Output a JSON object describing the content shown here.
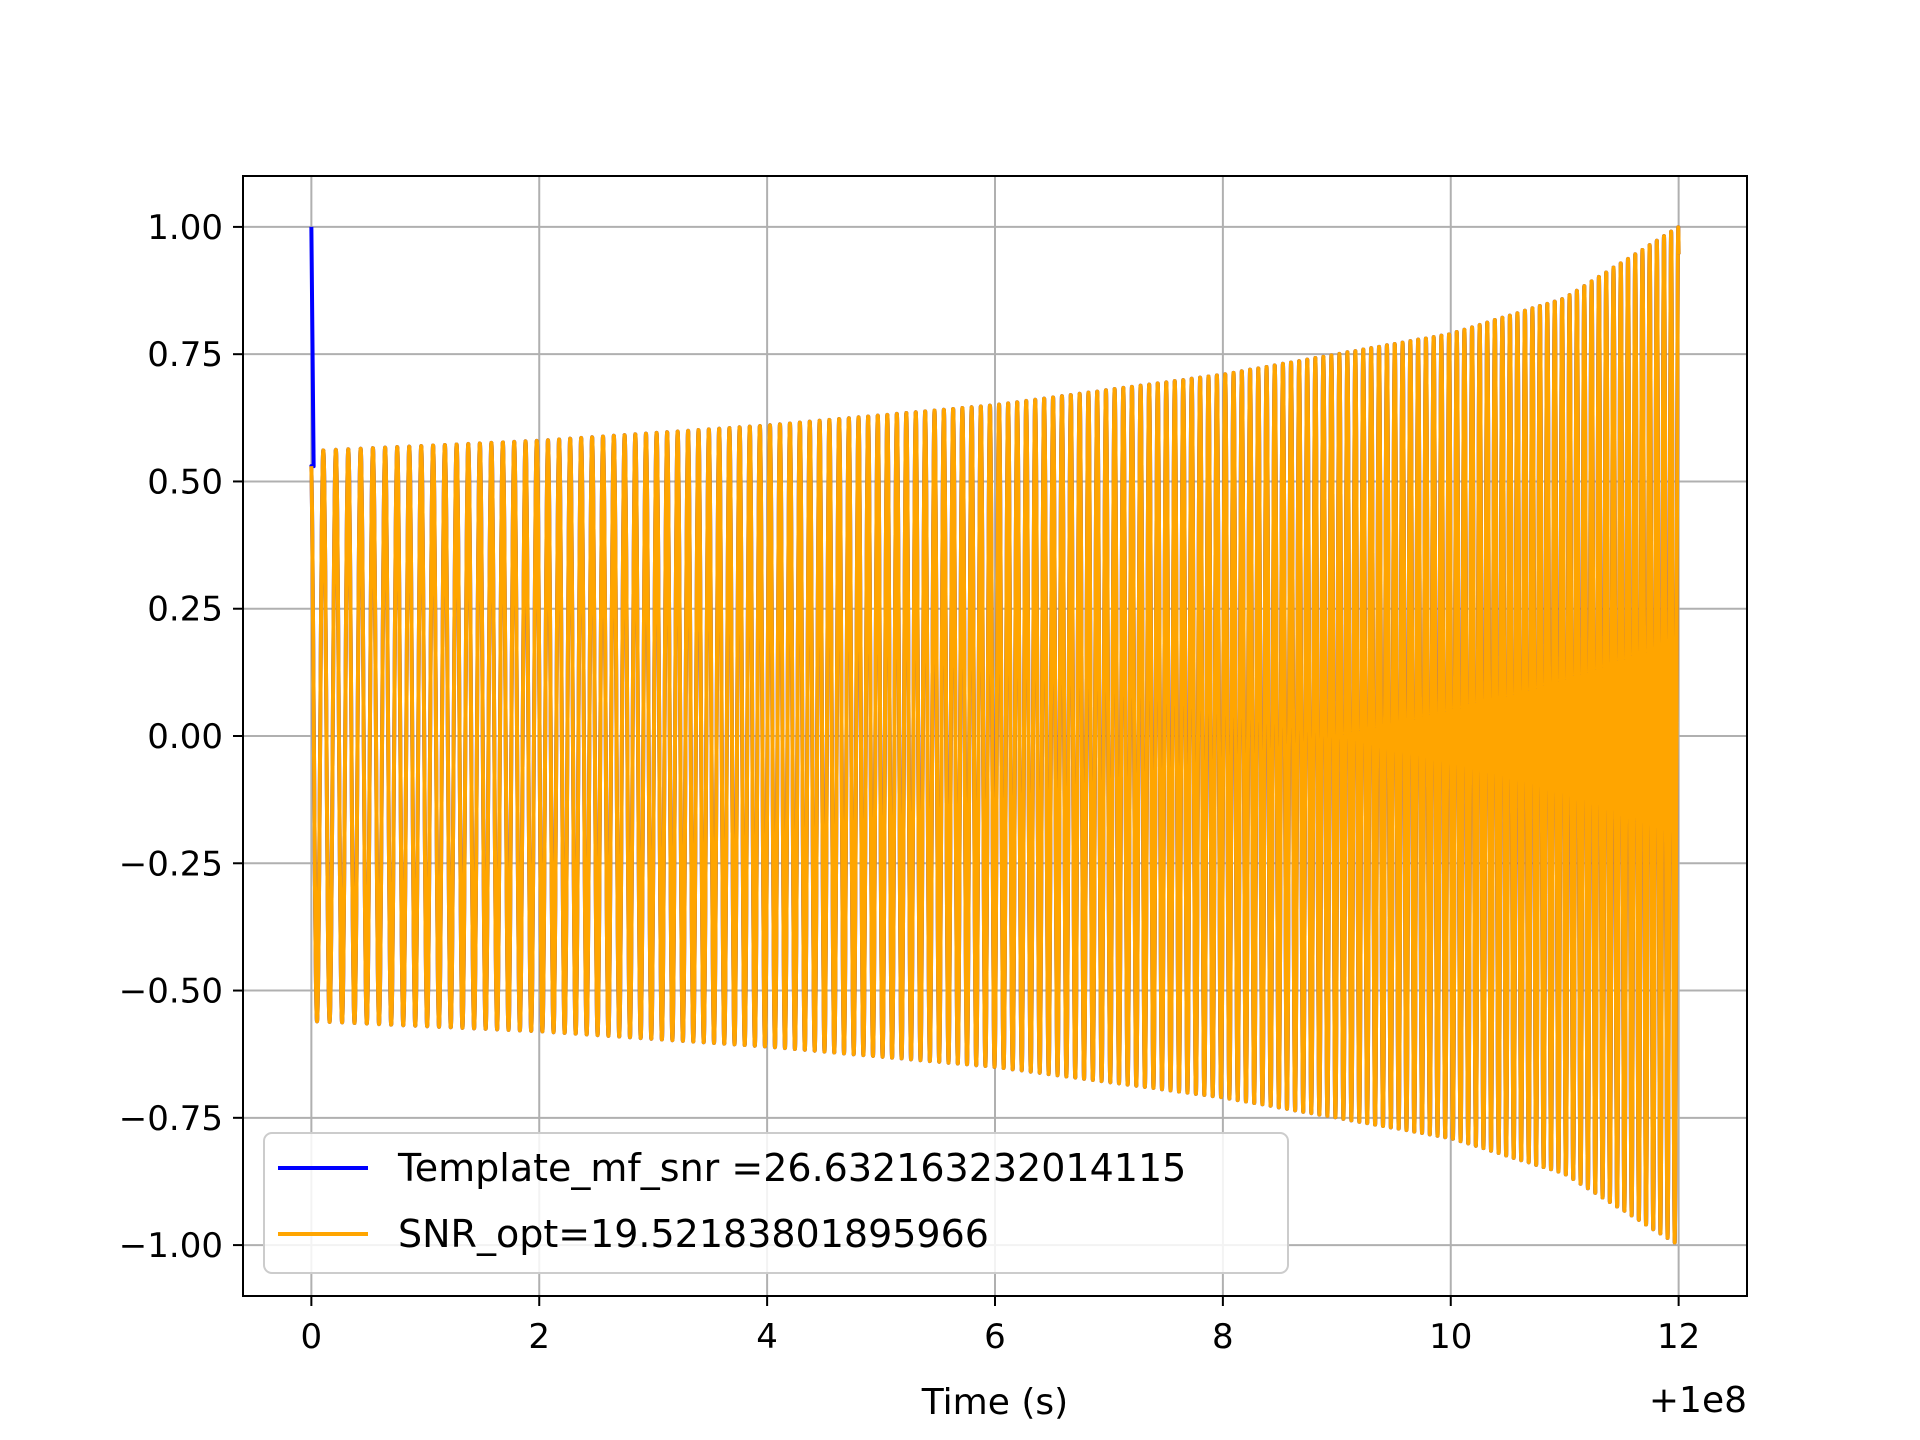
{
  "chart_data": {
    "type": "line",
    "title": "",
    "xlabel": "Time (s)",
    "ylabel": "",
    "x_offset_label": "+1e8",
    "xlim": [
      -0.6,
      12.6
    ],
    "ylim": [
      -1.1,
      1.1
    ],
    "x_ticks": [
      0,
      2,
      4,
      6,
      8,
      10,
      12
    ],
    "x_tick_labels": [
      "0",
      "2",
      "4",
      "6",
      "8",
      "10",
      "12"
    ],
    "y_ticks": [
      1.0,
      0.75,
      0.5,
      0.25,
      0.0,
      -0.25,
      -0.5,
      -0.75,
      -1.0
    ],
    "y_tick_labels": [
      "1.00",
      "0.75",
      "0.50",
      "0.25",
      "0.00",
      "−0.25",
      "−0.50",
      "−0.75",
      "−1.00"
    ],
    "grid": true,
    "legend_position": "lower-left",
    "series": [
      {
        "name": "Template_mf_snr =26.632163232014115",
        "color": "#0000ff",
        "description_points": {
          "x": [
            0.0,
            0.02
          ],
          "y": [
            1.0,
            0.53
          ]
        },
        "start_x": 0.0,
        "end_x": 12.0,
        "start_amplitude": 0.53,
        "mid_amplitude": 0.6,
        "end_amplitude": 1.0,
        "cycles": 150
      },
      {
        "name": "SNR_opt=19.52183801895966",
        "color": "#ffa500",
        "start_x": 0.0,
        "end_x": 12.0,
        "start_amplitude": 0.53,
        "envelope_x": [
          0,
          2,
          4,
          6,
          8,
          10,
          11,
          12
        ],
        "envelope_y": [
          0.56,
          0.58,
          0.61,
          0.65,
          0.71,
          0.79,
          0.86,
          1.0
        ],
        "cycles": 150
      }
    ]
  }
}
